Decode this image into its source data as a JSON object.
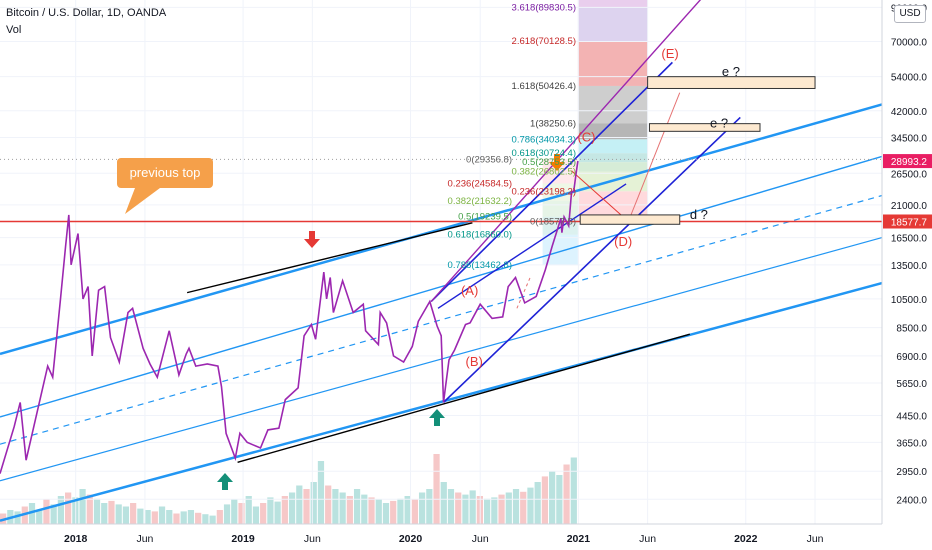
{
  "header": {
    "symbol_title": "Bitcoin / U.S. Dollar, 1D, OANDA",
    "volume_label": "Vol",
    "currency_button": "USD"
  },
  "callout": {
    "text": "previous top"
  },
  "chart_data": {
    "type": "line",
    "title": "Bitcoin / U.S. Dollar, 1D, OANDA",
    "y_scale": "log",
    "ylim": [
      2000,
      95000
    ],
    "xlim": [
      "2017-07-20",
      "2022-10-25"
    ],
    "x_ticks": [
      {
        "date": "2018-01-01",
        "label": "2018"
      },
      {
        "date": "2018-06-01",
        "label": "Jun"
      },
      {
        "date": "2019-01-01",
        "label": "2019"
      },
      {
        "date": "2019-06-01",
        "label": "Jun"
      },
      {
        "date": "2020-01-01",
        "label": "2020"
      },
      {
        "date": "2020-06-01",
        "label": "Jun"
      },
      {
        "date": "2021-01-01",
        "label": "2021"
      },
      {
        "date": "2021-06-01",
        "label": "Jun"
      },
      {
        "date": "2022-01-01",
        "label": "2022"
      },
      {
        "date": "2022-06-01",
        "label": "Jun"
      }
    ],
    "y_ticks": [
      {
        "value": 90000,
        "label": "90000.0"
      },
      {
        "value": 70000,
        "label": "70000.0"
      },
      {
        "value": 54000,
        "label": "54000.0"
      },
      {
        "value": 42000,
        "label": "42000.0"
      },
      {
        "value": 34500,
        "label": "34500.0"
      },
      {
        "value": 26500,
        "label": "26500.0"
      },
      {
        "value": 21000,
        "label": "21000.0"
      },
      {
        "value": 16500,
        "label": "16500.0"
      },
      {
        "value": 13500,
        "label": "13500.0"
      },
      {
        "value": 10500,
        "label": "10500.0"
      },
      {
        "value": 8500,
        "label": "8500.0"
      },
      {
        "value": 6900,
        "label": "6900.0"
      },
      {
        "value": 5650,
        "label": "5650.0"
      },
      {
        "value": 4450,
        "label": "4450.0"
      },
      {
        "value": 3650,
        "label": "3650.0"
      },
      {
        "value": 2950,
        "label": "2950.0"
      },
      {
        "value": 2400,
        "label": "2400.0"
      }
    ],
    "price_badges": [
      {
        "value": 28993.2,
        "label": "28993.2",
        "color": "#e91e63"
      },
      {
        "value": 18577.7,
        "label": "18577.7",
        "color": "#e53935"
      }
    ],
    "series": [
      {
        "color": "#9c27b0",
        "points": [
          [
            "2017-07-20",
            2900
          ],
          [
            "2017-08-20",
            4100
          ],
          [
            "2017-09-02",
            4900
          ],
          [
            "2017-09-15",
            3200
          ],
          [
            "2017-10-05",
            4300
          ],
          [
            "2017-11-01",
            6400
          ],
          [
            "2017-11-12",
            5900
          ],
          [
            "2017-11-29",
            10500
          ],
          [
            "2017-12-10",
            15500
          ],
          [
            "2017-12-17",
            19500
          ],
          [
            "2017-12-22",
            13500
          ],
          [
            "2018-01-06",
            17000
          ],
          [
            "2018-01-17",
            10500
          ],
          [
            "2018-01-28",
            11500
          ],
          [
            "2018-02-06",
            6900
          ],
          [
            "2018-02-20",
            11200
          ],
          [
            "2018-03-05",
            11500
          ],
          [
            "2018-03-18",
            7900
          ],
          [
            "2018-04-06",
            6600
          ],
          [
            "2018-04-25",
            9500
          ],
          [
            "2018-05-05",
            9800
          ],
          [
            "2018-05-28",
            7300
          ],
          [
            "2018-06-12",
            6500
          ],
          [
            "2018-06-28",
            5900
          ],
          [
            "2018-07-24",
            8300
          ],
          [
            "2018-08-14",
            6000
          ],
          [
            "2018-08-30",
            7000
          ],
          [
            "2018-09-05",
            7300
          ],
          [
            "2018-09-20",
            6400
          ],
          [
            "2018-10-15",
            6500
          ],
          [
            "2018-11-07",
            6400
          ],
          [
            "2018-11-15",
            5500
          ],
          [
            "2018-11-25",
            3900
          ],
          [
            "2018-12-15",
            3250
          ],
          [
            "2018-12-25",
            3900
          ],
          [
            "2019-01-10",
            3650
          ],
          [
            "2019-02-08",
            3500
          ],
          [
            "2019-02-24",
            4000
          ],
          [
            "2019-03-20",
            4050
          ],
          [
            "2019-04-03",
            5000
          ],
          [
            "2019-05-01",
            5450
          ],
          [
            "2019-05-14",
            8000
          ],
          [
            "2019-05-30",
            8700
          ],
          [
            "2019-06-08",
            7800
          ],
          [
            "2019-06-26",
            12800
          ],
          [
            "2019-07-02",
            10500
          ],
          [
            "2019-07-10",
            12300
          ],
          [
            "2019-07-17",
            9500
          ],
          [
            "2019-08-06",
            12000
          ],
          [
            "2019-08-29",
            9500
          ],
          [
            "2019-09-20",
            10100
          ],
          [
            "2019-09-25",
            8300
          ],
          [
            "2019-10-23",
            7500
          ],
          [
            "2019-10-27",
            9500
          ],
          [
            "2019-11-10",
            8800
          ],
          [
            "2019-11-25",
            6900
          ],
          [
            "2019-12-17",
            6600
          ],
          [
            "2020-01-05",
            7400
          ],
          [
            "2020-01-18",
            8900
          ],
          [
            "2020-02-12",
            10300
          ],
          [
            "2020-02-28",
            8600
          ],
          [
            "2020-03-08",
            8000
          ],
          [
            "2020-03-13",
            4900
          ],
          [
            "2020-03-25",
            6700
          ],
          [
            "2020-04-06",
            7200
          ],
          [
            "2020-04-30",
            8700
          ],
          [
            "2020-05-10",
            8800
          ],
          [
            "2020-06-01",
            10100
          ],
          [
            "2020-06-27",
            9100
          ],
          [
            "2020-07-20",
            9200
          ],
          [
            "2020-08-01",
            11500
          ],
          [
            "2020-08-17",
            12300
          ],
          [
            "2020-09-06",
            10200
          ],
          [
            "2020-10-01",
            10700
          ],
          [
            "2020-10-21",
            13000
          ],
          [
            "2020-11-05",
            15500
          ],
          [
            "2020-11-24",
            19000
          ],
          [
            "2020-11-26",
            17100
          ],
          [
            "2020-12-01",
            19200
          ],
          [
            "2020-12-11",
            18000
          ],
          [
            "2020-12-17",
            23000
          ],
          [
            "2020-12-22",
            23300
          ],
          [
            "2020-12-27",
            26500
          ],
          [
            "2020-12-31",
            29000
          ]
        ]
      }
    ],
    "volume": [
      0.15,
      0.2,
      0.18,
      0.25,
      0.3,
      0.2,
      0.35,
      0.28,
      0.4,
      0.45,
      0.38,
      0.5,
      0.42,
      0.36,
      0.3,
      0.33,
      0.28,
      0.25,
      0.3,
      0.22,
      0.2,
      0.18,
      0.25,
      0.2,
      0.15,
      0.18,
      0.2,
      0.16,
      0.14,
      0.12,
      0.2,
      0.28,
      0.35,
      0.3,
      0.4,
      0.25,
      0.3,
      0.38,
      0.32,
      0.4,
      0.45,
      0.55,
      0.5,
      0.6,
      0.9,
      0.55,
      0.5,
      0.45,
      0.4,
      0.5,
      0.42,
      0.38,
      0.35,
      0.3,
      0.33,
      0.36,
      0.4,
      0.35,
      0.45,
      0.5,
      1.0,
      0.6,
      0.5,
      0.45,
      0.42,
      0.48,
      0.4,
      0.36,
      0.38,
      0.42,
      0.45,
      0.5,
      0.46,
      0.52,
      0.6,
      0.68,
      0.75,
      0.7,
      0.85,
      0.95
    ],
    "fib_levels": [
      {
        "label": "3.618(89830.5)",
        "color": "#7b1fa2"
      },
      {
        "label": "2.618(70128.5)",
        "color": "#c62828"
      },
      {
        "label": "1.618(50426.4)",
        "color": "#424242"
      },
      {
        "label": "1(38250.6)",
        "color": "#424242"
      },
      {
        "label": "0.786(34034.3)",
        "color": "#0097a7"
      },
      {
        "label": "0.618(30724.4)",
        "color": "#009688"
      },
      {
        "label": "0.5(28753.5)",
        "color": "#43a047"
      },
      {
        "label": "0.382(26802.5)",
        "color": "#7cb342"
      },
      {
        "label": "0.236(23198.2)",
        "color": "#c62828"
      },
      {
        "label": "0(18577.5)",
        "color": "#616161"
      },
      {
        "label": "0(29356.8)",
        "color": "#616161"
      },
      {
        "label": "0.236(24584.5)",
        "color": "#c62828"
      },
      {
        "label": "0.382(21632.2)",
        "color": "#7cb342"
      },
      {
        "label": "0.5(19239.5)",
        "color": "#43a047"
      },
      {
        "label": "0.618(16860.0)",
        "color": "#009688"
      },
      {
        "label": "0.786(13462.8)",
        "color": "#0097a7"
      }
    ],
    "annotations": [
      {
        "label": "(A)",
        "color": "#e53935"
      },
      {
        "label": "(B)",
        "color": "#e53935"
      },
      {
        "label": "(C)",
        "color": "#e53935"
      },
      {
        "label": "(D)",
        "color": "#e53935"
      },
      {
        "label": "(E)",
        "color": "#e53935"
      },
      {
        "label": "e ?",
        "color": "#131722"
      },
      {
        "label": "e ?",
        "color": "#131722"
      },
      {
        "label": "d ?",
        "color": "#131722"
      }
    ]
  }
}
